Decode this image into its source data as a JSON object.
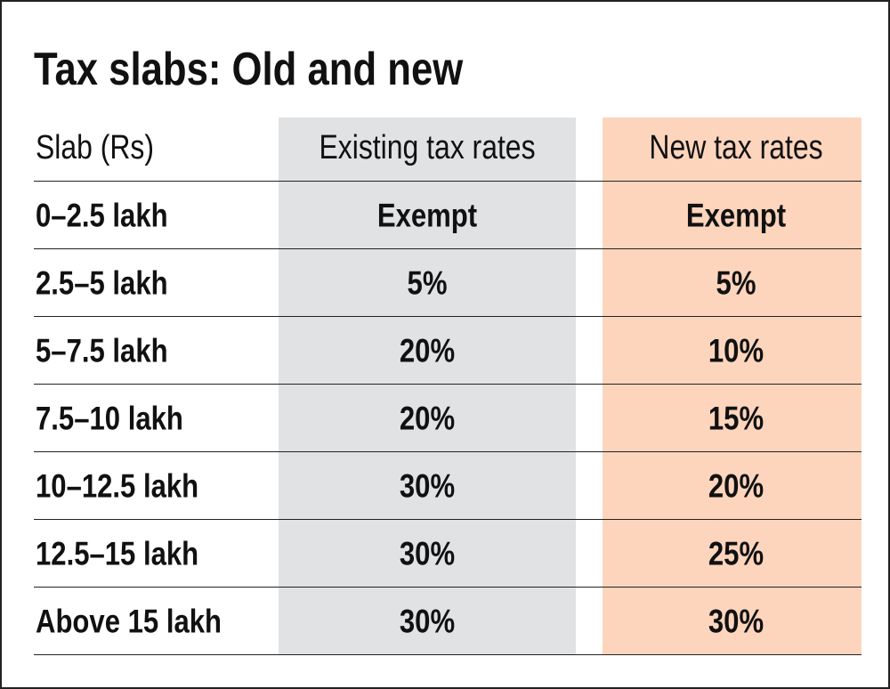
{
  "title": "Tax slabs: Old and new",
  "table": {
    "headers": [
      "Slab (Rs)",
      "Existing tax rates",
      "New tax rates"
    ],
    "rows": [
      [
        "0–2.5 lakh",
        "Exempt",
        "Exempt"
      ],
      [
        "2.5–5 lakh",
        "5%",
        "5%"
      ],
      [
        "5–7.5 lakh",
        "20%",
        "10%"
      ],
      [
        "7.5–10 lakh",
        "20%",
        "15%"
      ],
      [
        "10–12.5 lakh",
        "30%",
        "20%"
      ],
      [
        "12.5–15 lakh",
        "30%",
        "25%"
      ],
      [
        "Above 15 lakh",
        "30%",
        "30%"
      ]
    ]
  }
}
